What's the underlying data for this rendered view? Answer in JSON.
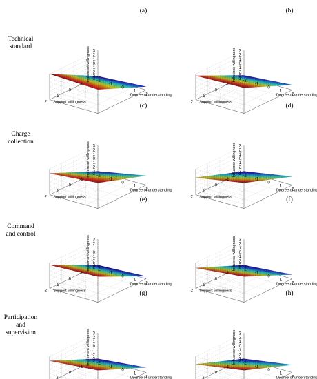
{
  "row_labels": [
    [
      "Technical",
      "standard"
    ],
    [
      "Charge",
      "collection"
    ],
    [
      "Command",
      "and control"
    ],
    [
      "Participation",
      "and",
      "supervision"
    ]
  ],
  "chart_data": [
    {
      "type": "surface3d",
      "panel_label": "(a)",
      "zlabel": "Implement willingness",
      "xlabel": "Degree of understanding",
      "ylabel": "Support willingness",
      "xlim": [
        -2,
        2
      ],
      "ylim": [
        -2,
        2
      ],
      "zlim": [
        -3,
        3
      ],
      "xticks": [
        -2,
        -1,
        0,
        1,
        2
      ],
      "yticks": [
        -2,
        -1,
        0,
        1,
        2
      ],
      "zticks": [
        -3,
        -2,
        -1,
        0,
        1,
        2,
        3
      ],
      "colormap": "jet",
      "corner_values": {
        "x_-2_y_-2": -3.0,
        "x_2_y_-2": -2.2,
        "x_-2_y_2": 3.0,
        "x_2_y_2": 2.6
      }
    },
    {
      "type": "surface3d",
      "panel_label": "(b)",
      "zlabel": "Influence willingness",
      "xlabel": "Degree of understanding",
      "ylabel": "Support willingness",
      "xlim": [
        -2,
        2
      ],
      "ylim": [
        -2,
        2
      ],
      "zlim": [
        -3,
        3
      ],
      "xticks": [
        -2,
        -1,
        0,
        1,
        2
      ],
      "yticks": [
        -2,
        -1,
        0,
        1,
        2
      ],
      "zticks": [
        -3,
        -2,
        -1,
        0,
        1,
        2,
        3
      ],
      "colormap": "jet",
      "corner_values": {
        "x_-2_y_-2": -2.8,
        "x_2_y_-2": -1.8,
        "x_-2_y_2": 2.6,
        "x_2_y_2": 3.0
      }
    },
    {
      "type": "surface3d",
      "panel_label": "(c)",
      "zlabel": "Implement willingness",
      "xlabel": "Degree of understanding",
      "ylabel": "Support willingness",
      "xlim": [
        -2,
        2
      ],
      "ylim": [
        -2,
        2
      ],
      "zlim": [
        -3,
        3
      ],
      "xticks": [
        -2,
        -1,
        0,
        1,
        2
      ],
      "yticks": [
        -2,
        -1,
        0,
        1,
        2
      ],
      "zticks": [
        -3,
        -2,
        -1,
        0,
        1,
        2,
        3
      ],
      "colormap": "jet",
      "corner_values": {
        "x_-2_y_-2": -3.0,
        "x_2_y_-2": -0.8,
        "x_-2_y_2": 2.0,
        "x_2_y_2": 3.0
      }
    },
    {
      "type": "surface3d",
      "panel_label": "(d)",
      "zlabel": "Influence willingness",
      "xlabel": "Degree of understanding",
      "ylabel": "Support willingness",
      "xlim": [
        -2,
        2
      ],
      "ylim": [
        -2,
        2
      ],
      "zlim": [
        -3,
        3
      ],
      "xticks": [
        -2,
        -1,
        0,
        1,
        2
      ],
      "yticks": [
        -2,
        -1,
        0,
        1,
        2
      ],
      "zticks": [
        -3,
        -2,
        -1,
        0,
        1,
        2,
        3
      ],
      "colormap": "jet",
      "corner_values": {
        "x_-2_y_-2": -3.0,
        "x_2_y_-2": -1.0,
        "x_-2_y_2": 1.0,
        "x_2_y_2": 3.0
      }
    },
    {
      "type": "surface3d",
      "panel_label": "(e)",
      "zlabel": "Implement willingness",
      "xlabel": "Degree of understanding",
      "ylabel": "Support willingness",
      "xlim": [
        -2,
        2
      ],
      "ylim": [
        -2,
        2
      ],
      "zlim": [
        -3,
        3
      ],
      "xticks": [
        -2,
        -1,
        0,
        1,
        2
      ],
      "yticks": [
        -2,
        -1,
        0,
        1,
        2
      ],
      "zticks": [
        -3,
        -2,
        -1,
        0,
        1,
        2,
        3
      ],
      "colormap": "jet",
      "corner_values": {
        "x_-2_y_-2": -3.0,
        "x_2_y_-2": -2.4,
        "x_-2_y_2": 2.5,
        "x_2_y_2": 3.0
      }
    },
    {
      "type": "surface3d",
      "panel_label": "(f)",
      "zlabel": "Influence willingness",
      "xlabel": "Degree of understanding",
      "ylabel": "Support willingness",
      "xlim": [
        -2,
        2
      ],
      "ylim": [
        -2,
        2
      ],
      "zlim": [
        -3,
        3
      ],
      "xticks": [
        -2,
        -1,
        0,
        1,
        2
      ],
      "yticks": [
        -2,
        -1,
        0,
        1,
        2
      ],
      "zticks": [
        -3,
        -2,
        -1,
        0,
        1,
        2,
        3
      ],
      "colormap": "jet",
      "corner_values": {
        "x_-2_y_-2": -3.0,
        "x_2_y_-2": -2.0,
        "x_-2_y_2": 1.8,
        "x_2_y_2": 3.0
      }
    },
    {
      "type": "surface3d",
      "panel_label": "(g)",
      "zlabel": "Implement willingness",
      "xlabel": "Degree of understanding",
      "ylabel": "Support willingness",
      "xlim": [
        -2,
        2
      ],
      "ylim": [
        -2,
        2
      ],
      "zlim": [
        -3,
        3
      ],
      "xticks": [
        -2,
        -1,
        0,
        1,
        2
      ],
      "yticks": [
        -2,
        -1,
        0,
        1,
        2
      ],
      "zticks": [
        -3,
        -2,
        -1,
        0,
        1,
        2,
        3
      ],
      "colormap": "jet",
      "corner_values": {
        "x_-2_y_-2": -3.0,
        "x_2_y_-2": -1.8,
        "x_-2_y_2": 2.0,
        "x_2_y_2": 3.0
      }
    },
    {
      "type": "surface3d",
      "panel_label": "(h)",
      "zlabel": "Influence willingness",
      "xlabel": "Degree of understanding",
      "ylabel": "Support willingness",
      "xlim": [
        -2,
        2
      ],
      "ylim": [
        -2,
        2
      ],
      "zlim": [
        -3,
        3
      ],
      "xticks": [
        -2,
        -1,
        0,
        1,
        2
      ],
      "yticks": [
        -2,
        -1,
        0,
        1,
        2
      ],
      "zticks": [
        -3,
        -2,
        -1,
        0,
        1,
        2,
        3
      ],
      "colormap": "jet",
      "corner_values": {
        "x_-2_y_-2": -3.0,
        "x_2_y_-2": -1.2,
        "x_-2_y_2": 1.2,
        "x_2_y_2": 3.0
      }
    }
  ]
}
